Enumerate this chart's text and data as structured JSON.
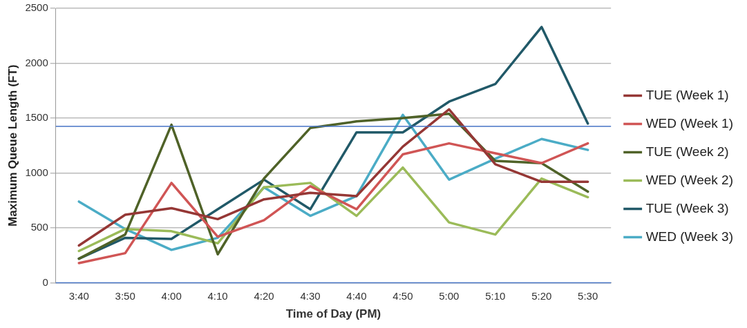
{
  "chart_data": {
    "type": "line",
    "xlabel": "Time of Day (PM)",
    "ylabel": "Maximum Queue Length (FT)",
    "categories": [
      "3:40",
      "3:50",
      "4:00",
      "4:10",
      "4:20",
      "4:30",
      "4:40",
      "4:50",
      "5:00",
      "5:10",
      "5:20",
      "5:30"
    ],
    "series": [
      {
        "name": "TUE (Week 1)",
        "color": "#953735",
        "values": [
          340,
          620,
          680,
          580,
          760,
          820,
          790,
          1240,
          1580,
          1080,
          920,
          920
        ]
      },
      {
        "name": "WED (Week 1)",
        "color": "#d05555",
        "values": [
          180,
          270,
          910,
          420,
          570,
          880,
          670,
          1170,
          1270,
          1180,
          1090,
          1270
        ]
      },
      {
        "name": "TUE (Week 2)",
        "color": "#4f6228",
        "values": [
          220,
          440,
          1440,
          260,
          950,
          1410,
          1470,
          1500,
          1540,
          1110,
          1090,
          830
        ]
      },
      {
        "name": "WED (Week 2)",
        "color": "#9bbb59",
        "values": [
          290,
          490,
          470,
          360,
          870,
          910,
          610,
          1050,
          550,
          440,
          950,
          780
        ]
      },
      {
        "name": "TUE (Week 3)",
        "color": "#215968",
        "values": [
          220,
          410,
          400,
          670,
          940,
          670,
          1370,
          1370,
          1650,
          1810,
          2330,
          1450
        ]
      },
      {
        "name": "WED (Week 3)",
        "color": "#4bacc6",
        "values": [
          740,
          490,
          300,
          410,
          870,
          610,
          790,
          1530,
          940,
          1130,
          1310,
          1210
        ]
      }
    ],
    "ylim": [
      0,
      2500
    ],
    "yticks": [
      0,
      500,
      1000,
      1500,
      2000,
      2500
    ],
    "grid": "y",
    "legend": "right",
    "marker": "none",
    "line_style": "solid",
    "ref_lines": [
      {
        "axis": "y",
        "value": 1425,
        "color": "#4472c4"
      },
      {
        "axis": "y",
        "value": 0,
        "color": "#4472c4"
      }
    ]
  }
}
